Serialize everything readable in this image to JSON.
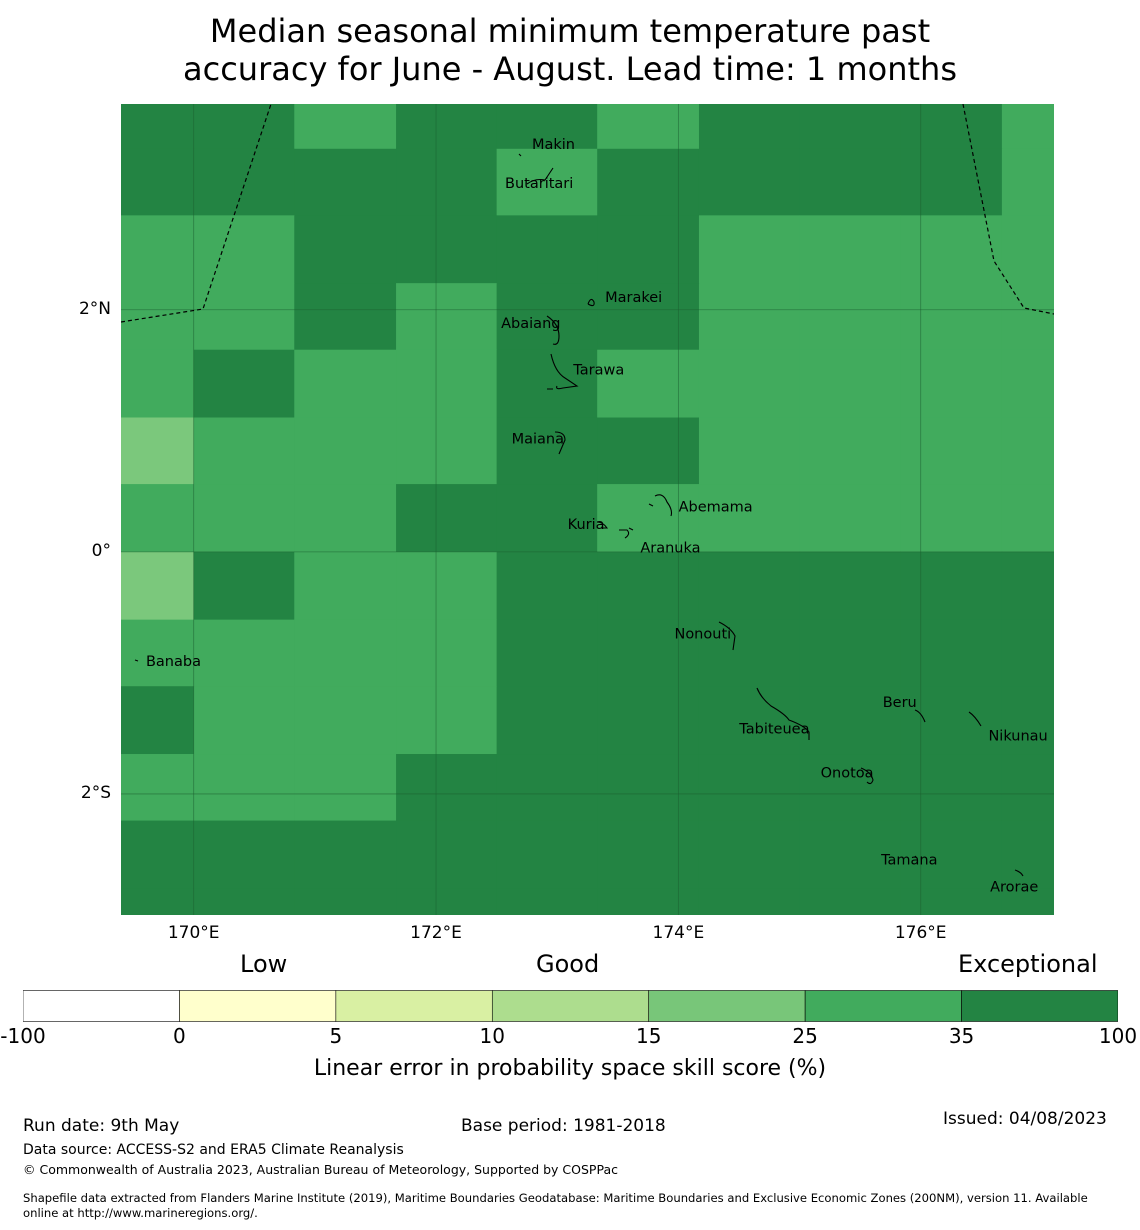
{
  "title_line1": "Median seasonal minimum temperature past",
  "title_line2": "accuracy for June - August. Lead time: 1 months",
  "colors": {
    "lvl1": "#7bc87c",
    "lvl2": "#41ab5d",
    "lvl3": "#238443",
    "grid": "#1a5e2e",
    "boundary": "#000000"
  },
  "map": {
    "lon_range": [
      169.4,
      177.1
    ],
    "lat_range": [
      -3.0,
      3.7
    ],
    "lat_ticks": [
      {
        "lat": 2,
        "label": "2°N"
      },
      {
        "lat": 0,
        "label": "0°"
      },
      {
        "lat": -2,
        "label": "2°S"
      }
    ],
    "lon_ticks": [
      {
        "lon": 170,
        "label": "170°E"
      },
      {
        "lon": 172,
        "label": "172°E"
      },
      {
        "lon": 174,
        "label": "174°E"
      },
      {
        "lon": 176,
        "label": "176°E"
      }
    ],
    "cell_lon_edges": [
      169.4,
      170.0,
      170.83,
      171.67,
      172.5,
      173.33,
      174.17,
      175.0,
      175.83,
      176.67,
      177.1
    ],
    "cell_lat_edges": [
      3.7,
      3.33,
      2.78,
      2.22,
      1.67,
      1.11,
      0.56,
      0.0,
      -0.56,
      -1.11,
      -1.67,
      -2.22,
      -2.78,
      -3.0
    ],
    "skill_levels": [
      [
        3,
        3,
        2,
        3,
        3,
        2,
        3,
        3,
        3,
        2
      ],
      [
        3,
        3,
        3,
        3,
        2,
        3,
        3,
        3,
        3,
        2
      ],
      [
        2,
        2,
        3,
        3,
        3,
        3,
        2,
        2,
        2,
        2
      ],
      [
        2,
        2,
        3,
        2,
        3,
        3,
        2,
        2,
        2,
        2
      ],
      [
        2,
        3,
        2,
        2,
        3,
        2,
        2,
        2,
        2,
        2
      ],
      [
        1,
        2,
        2,
        2,
        3,
        3,
        2,
        2,
        2,
        2
      ],
      [
        2,
        2,
        2,
        3,
        3,
        2,
        2,
        2,
        2,
        2
      ],
      [
        1,
        3,
        2,
        2,
        3,
        3,
        3,
        3,
        3,
        3
      ],
      [
        2,
        2,
        2,
        2,
        3,
        3,
        3,
        3,
        3,
        3
      ],
      [
        3,
        2,
        2,
        2,
        3,
        3,
        3,
        3,
        3,
        3
      ],
      [
        2,
        2,
        2,
        3,
        3,
        3,
        3,
        3,
        3,
        3
      ],
      [
        3,
        3,
        3,
        3,
        3,
        3,
        3,
        3,
        3,
        3
      ],
      [
        3,
        3,
        3,
        3,
        3,
        3,
        3,
        3,
        3,
        3
      ]
    ],
    "islands": [
      {
        "name": "Makin",
        "lon": 172.99,
        "lat": 3.31,
        "label_dx": -24,
        "label_dy": -2
      },
      {
        "name": "Butaritari",
        "lon": 172.85,
        "lat": 3.12,
        "label_dx": -34,
        "label_dy": 14
      },
      {
        "name": "Marakei",
        "lon": 173.28,
        "lat": 2.0,
        "label_dx": 14,
        "label_dy": -8
      },
      {
        "name": "Abaiang",
        "lon": 172.95,
        "lat": 1.85,
        "label_dx": -50,
        "label_dy": 0
      },
      {
        "name": "Tarawa",
        "lon": 173.05,
        "lat": 1.4,
        "label_dx": 10,
        "label_dy": -8
      },
      {
        "name": "Maiana",
        "lon": 173.02,
        "lat": 0.93,
        "label_dx": -48,
        "label_dy": 4
      },
      {
        "name": "Abemama",
        "lon": 173.87,
        "lat": 0.4,
        "label_dx": 16,
        "label_dy": 8
      },
      {
        "name": "Kuria",
        "lon": 173.4,
        "lat": 0.22,
        "label_dx": -38,
        "label_dy": 4
      },
      {
        "name": "Aranuka",
        "lon": 173.62,
        "lat": 0.16,
        "label_dx": 8,
        "label_dy": 20
      },
      {
        "name": "Nonouti",
        "lon": 174.43,
        "lat": -0.65,
        "label_dx": -56,
        "label_dy": 8
      },
      {
        "name": "Banaba",
        "lon": 169.54,
        "lat": -0.86,
        "label_dx": 8,
        "label_dy": 10
      },
      {
        "name": "Tabiteuea",
        "lon": 174.8,
        "lat": -1.35,
        "label_dx": -36,
        "label_dy": 18
      },
      {
        "name": "Beru",
        "lon": 176.0,
        "lat": -1.33,
        "label_dx": -38,
        "label_dy": -6
      },
      {
        "name": "Nikunau",
        "lon": 176.46,
        "lat": -1.36,
        "label_dx": 12,
        "label_dy": 24
      },
      {
        "name": "Onotoa",
        "lon": 175.57,
        "lat": -1.8,
        "label_dx": -48,
        "label_dy": 8
      },
      {
        "name": "Tamana",
        "lon": 175.97,
        "lat": -2.5,
        "label_dx": -36,
        "label_dy": 10
      },
      {
        "name": "Arorae",
        "lon": 176.82,
        "lat": -2.64,
        "label_dx": -30,
        "label_dy": 20
      }
    ]
  },
  "colorbar": {
    "category_labels": [
      "Low",
      "Good",
      "Exceptional"
    ],
    "bins": [
      {
        "from": -100,
        "to": 0,
        "color": "#ffffff"
      },
      {
        "from": 0,
        "to": 5,
        "color": "#ffffcc"
      },
      {
        "from": 5,
        "to": 10,
        "color": "#d9f0a3"
      },
      {
        "from": 10,
        "to": 15,
        "color": "#addd8e"
      },
      {
        "from": 15,
        "to": 25,
        "color": "#78c679"
      },
      {
        "from": 25,
        "to": 35,
        "color": "#41ab5d"
      },
      {
        "from": 35,
        "to": 100,
        "color": "#238443"
      }
    ],
    "tick_labels": [
      "-100",
      "0",
      "5",
      "10",
      "15",
      "25",
      "35",
      "100"
    ],
    "axis_label": "Linear error in probability space skill score (%)"
  },
  "footer": {
    "run_date": "Run date: 9th May",
    "base_period": "Base period: 1981-2018",
    "issued": "Issued: 04/08/2023",
    "data_source": "Data source: ACCESS-S2 and ERA5 Climate Reanalysis",
    "copyright": "© Commonwealth of Australia 2023, Australian Bureau of Meteorology, Supported by COSPPac",
    "shapefile_line1": "Shapefile data extracted from Flanders Marine Institute (2019), Maritime Boundaries Geodatabase: Maritime Boundaries and Exclusive Economic Zones (200NM), version 11. Available",
    "shapefile_line2": "online at http://www.marineregions.org/."
  }
}
